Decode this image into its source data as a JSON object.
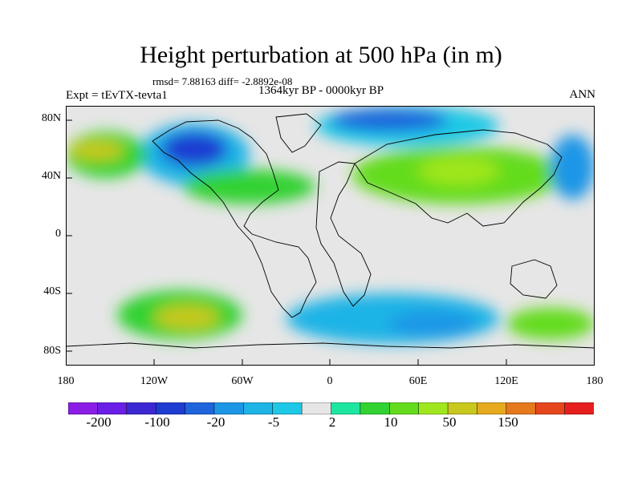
{
  "header": {
    "title": "Height perturbation at 500 hPa (in m)",
    "stats": "rmsd= 7.88163 diff= -2.8892e-08",
    "period": "1364kyr BP - 0000kyr BP",
    "experiment": "Expt = tEvTX-tevta1",
    "season": "ANN"
  },
  "axes": {
    "y_ticks": [
      "80N",
      "40N",
      "0",
      "40S",
      "80S"
    ],
    "x_ticks": [
      "180",
      "120W",
      "60W",
      "0",
      "60E",
      "120E",
      "180"
    ]
  },
  "colorbar": {
    "colors": [
      "#8b1ee6",
      "#6a1ee6",
      "#3c28d2",
      "#1e3cd2",
      "#1e64dc",
      "#1e96e6",
      "#1eb4e6",
      "#1ec8e6",
      "#e6e6e6",
      "#1ee6a0",
      "#32d232",
      "#64dc1e",
      "#a0e61e",
      "#c8c81e",
      "#e6aa1e",
      "#e6781e",
      "#e6461e",
      "#e61e1e"
    ],
    "labels": [
      "-200",
      "-100",
      "-20",
      "-5",
      "2",
      "10",
      "50",
      "150"
    ]
  },
  "map_data": {
    "lon_range": [
      -180,
      180
    ],
    "lat_range": [
      -90,
      90
    ],
    "background": "#e6e6e6",
    "features": [
      {
        "name": "anomaly-greenland-north-america-blue",
        "lon": [
          -130,
          -55
        ],
        "lat": [
          35,
          78
        ],
        "color": "#1eb4e6"
      },
      {
        "name": "anomaly-north-america-deep-blue",
        "lon": [
          -115,
          -70
        ],
        "lat": [
          48,
          72
        ],
        "color": "#1e3cd2"
      },
      {
        "name": "anomaly-north-pacific-green",
        "lon": [
          -180,
          -125
        ],
        "lat": [
          40,
          72
        ],
        "color": "#32d232"
      },
      {
        "name": "anomaly-north-pacific-yellow",
        "lon": [
          -178,
          -140
        ],
        "lat": [
          52,
          66
        ],
        "color": "#c8c81e"
      },
      {
        "name": "anomaly-north-atlantic-green",
        "lon": [
          -100,
          -10
        ],
        "lat": [
          22,
          46
        ],
        "color": "#32d232"
      },
      {
        "name": "anomaly-arctic-eurasia-blue",
        "lon": [
          -10,
          115
        ],
        "lat": [
          62,
          90
        ],
        "color": "#1ec8e6"
      },
      {
        "name": "anomaly-arctic-eurasia-deep-blue",
        "lon": [
          0,
          80
        ],
        "lat": [
          72,
          88
        ],
        "color": "#1e64dc"
      },
      {
        "name": "anomaly-eurasia-green",
        "lon": [
          15,
          160
        ],
        "lat": [
          22,
          62
        ],
        "color": "#64dc1e"
      },
      {
        "name": "anomaly-central-asia-yellow",
        "lon": [
          60,
          115
        ],
        "lat": [
          35,
          55
        ],
        "color": "#a0e61e"
      },
      {
        "name": "anomaly-northwest-pacific-blue",
        "lon": [
          150,
          180
        ],
        "lat": [
          25,
          70
        ],
        "color": "#1e96e6"
      },
      {
        "name": "anomaly-south-pacific-green",
        "lon": [
          -145,
          -60
        ],
        "lat": [
          -72,
          -38
        ],
        "color": "#32d232"
      },
      {
        "name": "anomaly-south-pacific-yellow",
        "lon": [
          -120,
          -75
        ],
        "lat": [
          -65,
          -48
        ],
        "color": "#c8c81e"
      },
      {
        "name": "anomaly-southern-ocean-blue",
        "lon": [
          -30,
          115
        ],
        "lat": [
          -75,
          -40
        ],
        "color": "#1eb4e6"
      },
      {
        "name": "anomaly-southern-ocean-deep-blue",
        "lon": [
          40,
          100
        ],
        "lat": [
          -70,
          -52
        ],
        "color": "#1e96e6"
      },
      {
        "name": "anomaly-southwest-pacific-green",
        "lon": [
          120,
          180
        ],
        "lat": [
          -72,
          -50
        ],
        "color": "#64dc1e"
      }
    ]
  }
}
